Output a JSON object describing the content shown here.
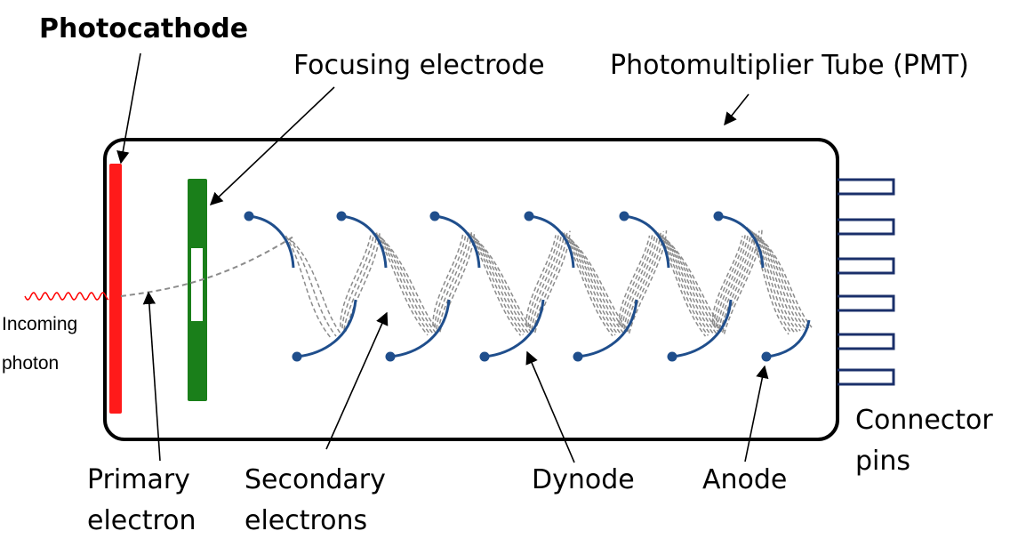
{
  "diagram": {
    "labels": {
      "photocathode": "Photocathode",
      "focusing_electrode": "Focusing electrode",
      "pmt": "Photomultiplier Tube (PMT)",
      "incoming_photon": [
        "Incoming",
        "photon"
      ],
      "primary_electron": [
        "Primary",
        "electron"
      ],
      "secondary_electrons": [
        "Secondary",
        "electrons"
      ],
      "dynode": "Dynode",
      "anode": "Anode",
      "connector_pins": [
        "Connector",
        "pins"
      ]
    },
    "colors": {
      "photocathode": "#ff1a1a",
      "focusing_electrode": "#1a7f1a",
      "dynode": "#1f4e8c",
      "electron_path": "#8c8c8c",
      "photon": "#ff0000",
      "outline": "#000000",
      "pins": "#1a2f6a"
    }
  }
}
